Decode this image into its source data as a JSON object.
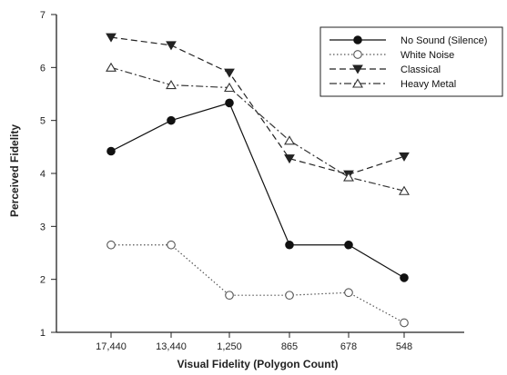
{
  "chart_data": {
    "type": "line",
    "title": "",
    "xlabel": "Visual Fidelity (Polygon Count)",
    "ylabel": "Perceived Fidelity",
    "categories": [
      "17,440",
      "13,440",
      "1,250",
      "865",
      "678",
      "548"
    ],
    "ylim": [
      1,
      7
    ],
    "yticks": [
      1,
      2,
      3,
      4,
      5,
      6,
      7
    ],
    "grid": false,
    "legend_position": "top-right",
    "series": [
      {
        "name": "No Sound (Silence)",
        "values": [
          4.42,
          5.0,
          5.33,
          2.65,
          2.65,
          2.03
        ],
        "line_style": "solid",
        "marker": "filled-circle",
        "color": "#111111"
      },
      {
        "name": "White Noise",
        "values": [
          2.65,
          2.65,
          1.7,
          1.7,
          1.75,
          1.18
        ],
        "line_style": "dotted",
        "marker": "open-circle",
        "color": "#555555"
      },
      {
        "name": "Classical",
        "values": [
          6.57,
          6.42,
          5.9,
          4.28,
          3.98,
          4.32
        ],
        "line_style": "dashed",
        "marker": "filled-triangle-down",
        "color": "#222222"
      },
      {
        "name": "Heavy Metal",
        "values": [
          6.0,
          5.67,
          5.62,
          4.62,
          3.93,
          3.67
        ],
        "line_style": "dash-dot",
        "marker": "open-triangle-up",
        "color": "#333333"
      }
    ]
  }
}
